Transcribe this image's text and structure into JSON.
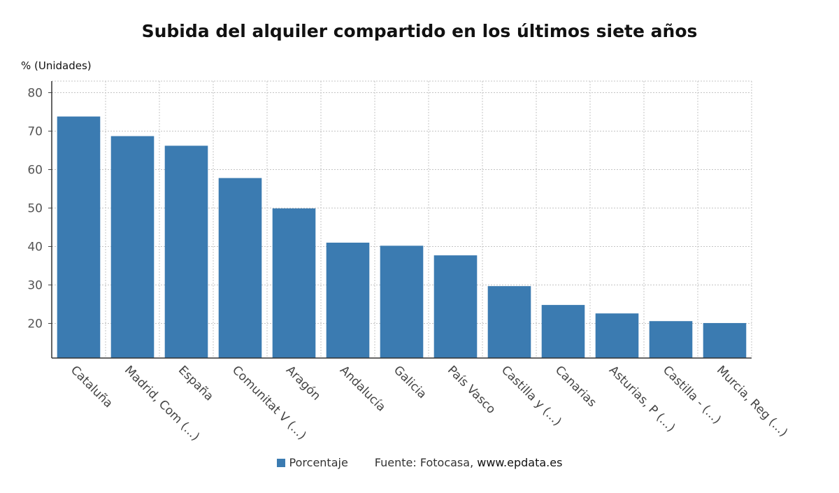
{
  "chart_data": {
    "type": "bar",
    "title": "Subida del alquiler compartido en los últimos siete años",
    "ylabel": "% (Unidades)",
    "xlabel": "",
    "categories": [
      "Cataluña",
      "Madrid, Com (...)",
      "España",
      "Comunitat V (...)",
      "Aragón",
      "Andalucía",
      "Galicia",
      "País Vasco",
      "Castilla y (...)",
      "Canarias",
      "Asturias, P (...)",
      "Castilla - (...)",
      "Murcia, Reg (...)"
    ],
    "series": [
      {
        "name": "Porcentaje",
        "values": [
          73.8,
          68.7,
          66.2,
          57.8,
          49.9,
          41.0,
          40.2,
          37.7,
          29.7,
          24.8,
          22.6,
          20.6,
          20.1
        ],
        "color": "#3b7bb1"
      }
    ],
    "ylim": [
      11,
      83
    ],
    "yticks": [
      20,
      30,
      40,
      50,
      60,
      70,
      80
    ],
    "grid": true,
    "legend_position": "bottom"
  },
  "legend": {
    "series_label": "Porcentaje",
    "source_label": "Fuente: Fotocasa,",
    "source_site": "www.epdata.es"
  }
}
